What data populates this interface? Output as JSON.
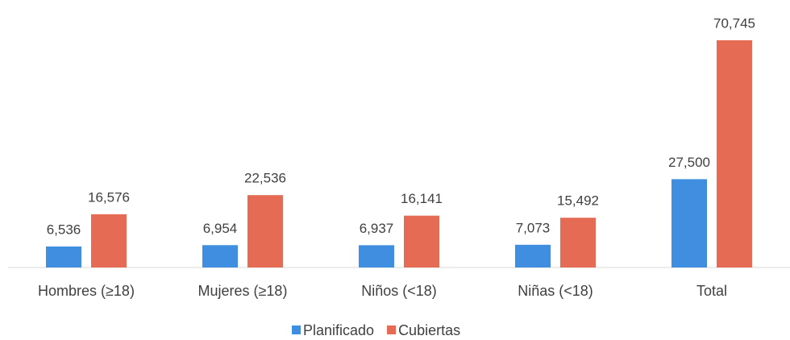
{
  "chart_data": {
    "type": "bar",
    "categories": [
      "Hombres (≥18)",
      "Mujeres (≥18)",
      "Niños (<18)",
      "Niñas (<18)",
      "Total"
    ],
    "series": [
      {
        "name": "Planificado",
        "color": "#3f8ee0",
        "values": [
          6536,
          6954,
          6937,
          7073,
          27500
        ],
        "value_labels": [
          "6,536",
          "6,954",
          "6,937",
          "7,073",
          "27,500"
        ]
      },
      {
        "name": "Cubiertas",
        "color": "#e56b55",
        "values": [
          16576,
          22536,
          16141,
          15492,
          70745
        ],
        "value_labels": [
          "16,576",
          "22,536",
          "16,141",
          "15,492",
          "70,745"
        ]
      }
    ],
    "legend": "bottom"
  }
}
